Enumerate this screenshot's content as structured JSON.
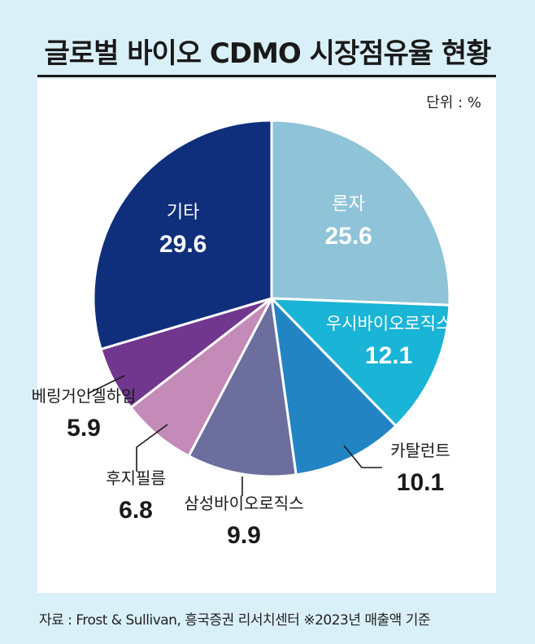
{
  "title": "글로벌 바이오 CDMO 시장점유율 현황",
  "unit_label": "단위 : %",
  "source": "자료 : Frost & Sullivan, 흥국증권 리서치센터  ※2023년 매출액 기준",
  "chart_data": {
    "type": "pie",
    "title": "글로벌 바이오 CDMO 시장점유율 현황",
    "unit": "%",
    "slices": [
      {
        "label": "론자",
        "value": 25.6,
        "color": "#8ec3d8"
      },
      {
        "label": "우시바이오로직스",
        "value": 12.1,
        "color": "#1ab4d6"
      },
      {
        "label": "카탈런트",
        "value": 10.1,
        "color": "#2384c4"
      },
      {
        "label": "삼성바이오로직스",
        "value": 9.9,
        "color": "#6c6e9e"
      },
      {
        "label": "후지필름",
        "value": 6.8,
        "color": "#c48ab8"
      },
      {
        "label": "베링거인겔하임",
        "value": 5.9,
        "color": "#71368e"
      },
      {
        "label": "기타",
        "value": 29.6,
        "color": "#0f2f7c"
      }
    ]
  }
}
